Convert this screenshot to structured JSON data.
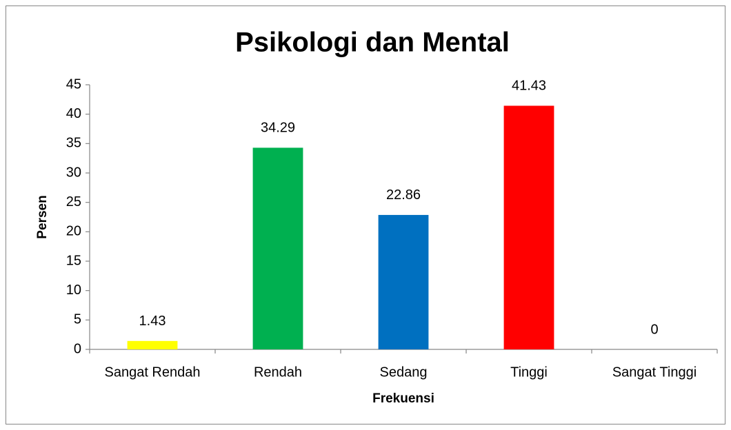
{
  "chart_data": {
    "type": "bar",
    "title": "Psikologi dan Mental",
    "x_label": "Frekuensi",
    "y_label": "Persen",
    "categories": [
      "Sangat Rendah",
      "Rendah",
      "Sedang",
      "Tinggi",
      "Sangat Tinggi"
    ],
    "values": [
      1.43,
      34.29,
      22.86,
      41.43,
      0
    ],
    "colors": [
      "#ffff00",
      "#00b050",
      "#0070c0",
      "#ff0000",
      null
    ],
    "ylim": [
      0,
      45
    ],
    "yticks": [
      0,
      5,
      10,
      15,
      20,
      25,
      30,
      35,
      40,
      45
    ],
    "grid": false
  }
}
